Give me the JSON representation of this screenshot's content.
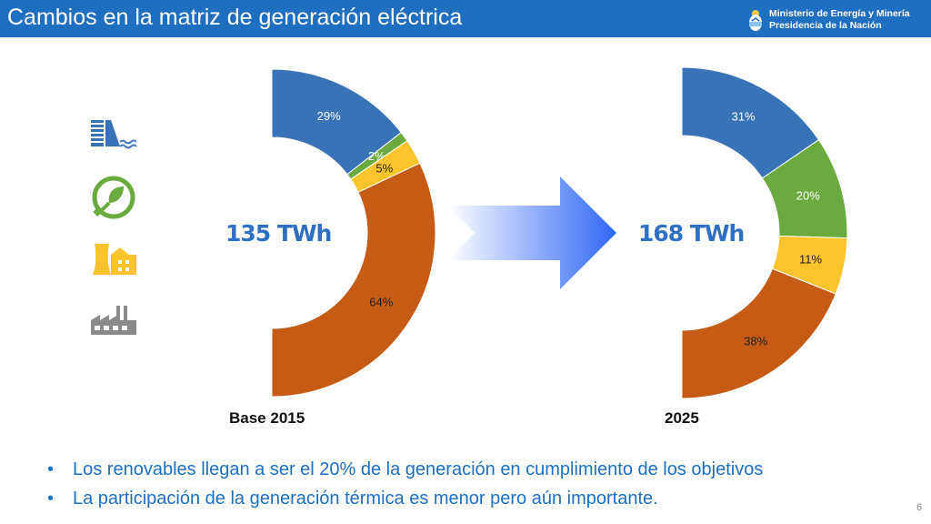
{
  "header": {
    "title": "Cambios en la matriz de generación eléctrica",
    "ministry_line1": "Ministerio de Energía y Minería",
    "ministry_line2": "Presidencia de la Nación"
  },
  "legend_icons": [
    "hydro-dam-icon",
    "renewable-plug-icon",
    "nuclear-plant-icon",
    "thermal-factory-icon"
  ],
  "colors": {
    "blue": "#3a72b8",
    "green": "#6aaa3f",
    "yellow": "#fcc42c",
    "orange": "#c55b15",
    "header": "#1f6fc0"
  },
  "chart_data": [
    {
      "type": "pie",
      "categories": [
        "",
        "",
        "",
        ""
      ],
      "values": [
        29,
        2,
        5,
        64
      ],
      "labels": [
        "29%",
        "2%",
        "5%",
        "64%"
      ],
      "center_label": "135 TWh",
      "xlabel": "Base 2015",
      "colors": [
        "#3a72b8",
        "#6aaa3f",
        "#fcc42c",
        "#c55b15"
      ]
    },
    {
      "type": "pie",
      "categories": [
        "",
        "",
        "",
        ""
      ],
      "values": [
        31,
        20,
        11,
        38
      ],
      "labels": [
        "31%",
        "20%",
        "11%",
        "38%"
      ],
      "center_label": "168 TWh",
      "xlabel": "2025",
      "colors": [
        "#3a72b8",
        "#6aaa3f",
        "#fcc42c",
        "#c55b15"
      ]
    }
  ],
  "bullets": [
    "Los renovables llegan a ser el 20% de la generación en cumplimiento de los objetivos",
    "La participación de la generación térmica es menor pero aún importante."
  ],
  "page_number": "6"
}
